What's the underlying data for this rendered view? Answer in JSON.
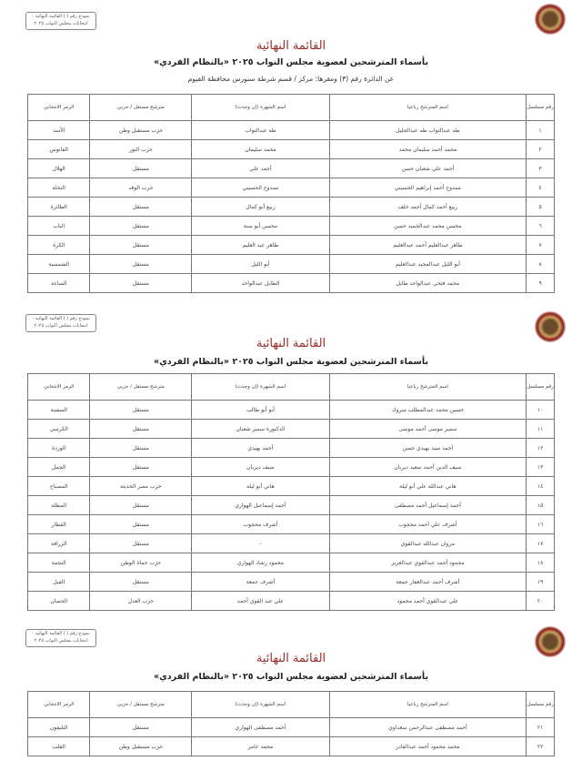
{
  "stamp": "نموذج رقم ( ) القائمة النهائية - انتخابات مجلس النواب ٢٠٢٥",
  "title": "القائمة النهائية",
  "subtitle": "بأسماء المترشحين لعضوية مجلس النواب ٢٠٢٥ «بالنظام الفردي»",
  "district": "عن الدائرة رقم (٣) ومقرها: مركز / قسم شرطة سنورس محافظة الفيوم",
  "headers": [
    "رقم مسلسل",
    "اسم المترشح رباعيا",
    "اسم الشهرة (إن وجدت)",
    "مترشح مستقل / حزبي",
    "الرمز الانتخابي"
  ],
  "tables": [
    {
      "rows": [
        [
          "١",
          "طه عبدالتواب طه عبدالجليل",
          "طه عبدالتواب",
          "حزب مستقبل وطن",
          "الأسد"
        ],
        [
          "٢",
          "محمد أحمد سليمان محمد",
          "محمد سليمان",
          "حزب النور",
          "الفانوس"
        ],
        [
          "٣",
          "أحمد علي شعبان حسن",
          "أحمد علي",
          "مستقل",
          "الهلال"
        ],
        [
          "٤",
          "ممدوح أحمد إبراهيم الحسيني",
          "ممدوح الحسيني",
          "حزب الوفد",
          "النخلة"
        ],
        [
          "٥",
          "ربيع أحمد كمال أحمد خلف",
          "ربيع أبو كمال",
          "مستقل",
          "الطائرة"
        ],
        [
          "٦",
          "محسن محمد عبدالحميد حسن",
          "محسن أبو سنة",
          "مستقل",
          "الباب"
        ],
        [
          "٧",
          "طاهر عبدالعليم أحمد عبدالعليم",
          "طاهر عبد العليم",
          "مستقل",
          "الكرة"
        ],
        [
          "٨",
          "أبو الليل عبدالمجيد عبدالعليم",
          "أبو الليل",
          "مستقل",
          "الشمسية"
        ],
        [
          "٩",
          "محمد فتحي عبدالواحد طايل",
          "الطايل عبدالواحد",
          "مستقل",
          "الساعة"
        ]
      ]
    },
    {
      "rows": [
        [
          "١٠",
          "حسين محمد عبدالمطلب مبروك",
          "أبو أبو طالب",
          "مستقل",
          "السفينة"
        ],
        [
          "١١",
          "سمير موسى أحمد موسى",
          "الدكتورة سمير شعبان",
          "مستقل",
          "الكرسي"
        ],
        [
          "١٢",
          "أحمد سيد بهيدي حسن",
          "أحمد بهيدي",
          "مستقل",
          "الوردة"
        ],
        [
          "١٣",
          "سيف الدين أحمد سعيد ديربان",
          "سيف ديربان",
          "مستقل",
          "الجمل"
        ],
        [
          "١٤",
          "هاني عبدالله علي أبو ليلة",
          "هاني أبو ليلة",
          "حزب مصر الحديثة",
          "المصباح"
        ],
        [
          "١٥",
          "أحمد إسماعيل أحمد مصطفى",
          "أحمد إسماعيل الهواري",
          "مستقل",
          "المظلة"
        ],
        [
          "١٦",
          "أشرف علي أحمد محجوب",
          "أشرف محجوب",
          "مستقل",
          "القطار"
        ],
        [
          "١٧",
          "مروان عبدالله عبدالقوي",
          "-",
          "مستقل",
          "الزرافة"
        ],
        [
          "١٨",
          "محمود أحمد عبدالقوي عبدالعزيز",
          "محمود رشاد الهواري",
          "حزب حماة الوطن",
          "النجمة"
        ],
        [
          "١٩",
          "أشرف أحمد عبدالغفار جمعة",
          "أشرف جمعة",
          "مستقل",
          "الفيل"
        ],
        [
          "٢٠",
          "علي عبدالقوي أحمد محمود",
          "علي عبد القوي أحمد",
          "حزب العدل",
          "الحصان"
        ]
      ]
    },
    {
      "rows": [
        [
          "٢١",
          "أحمد مصطفى عبدالرحمن سعداوي",
          "أحمد مصطفى الهواري",
          "مستقل",
          "التليفون"
        ],
        [
          "٢٢",
          "محمد محمود أحمد عبدالقادر",
          "محمد عامر",
          "حزب مستقبل وطن",
          "القلب"
        ]
      ]
    }
  ]
}
